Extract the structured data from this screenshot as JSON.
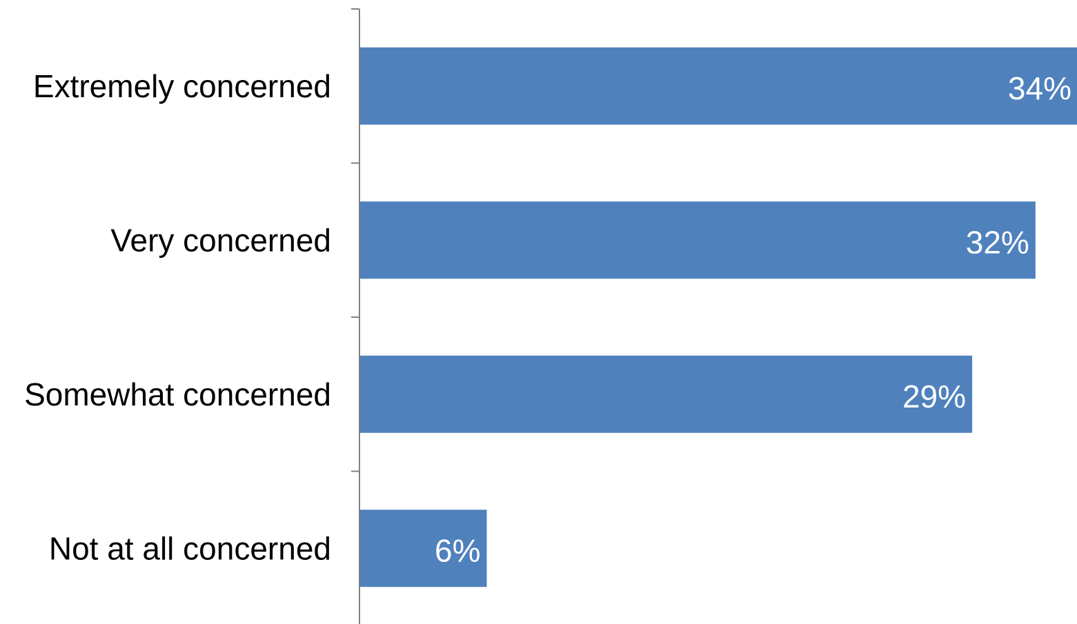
{
  "chart_data": {
    "type": "bar",
    "orientation": "horizontal",
    "categories": [
      "Extremely concerned",
      "Very concerned",
      "Somewhat concerned",
      "Not at all concerned"
    ],
    "values": [
      34,
      32,
      29,
      6
    ],
    "data_labels": [
      "34%",
      "32%",
      "29%",
      "6%"
    ],
    "title": "",
    "xlabel": "",
    "ylabel": "",
    "xlim": [
      0,
      34
    ],
    "grid": false,
    "legend": "none",
    "colors": {
      "bar": "#4f81bd",
      "axis": "#808080",
      "category_text": "#000000",
      "data_label_text": "#ffffff"
    }
  }
}
